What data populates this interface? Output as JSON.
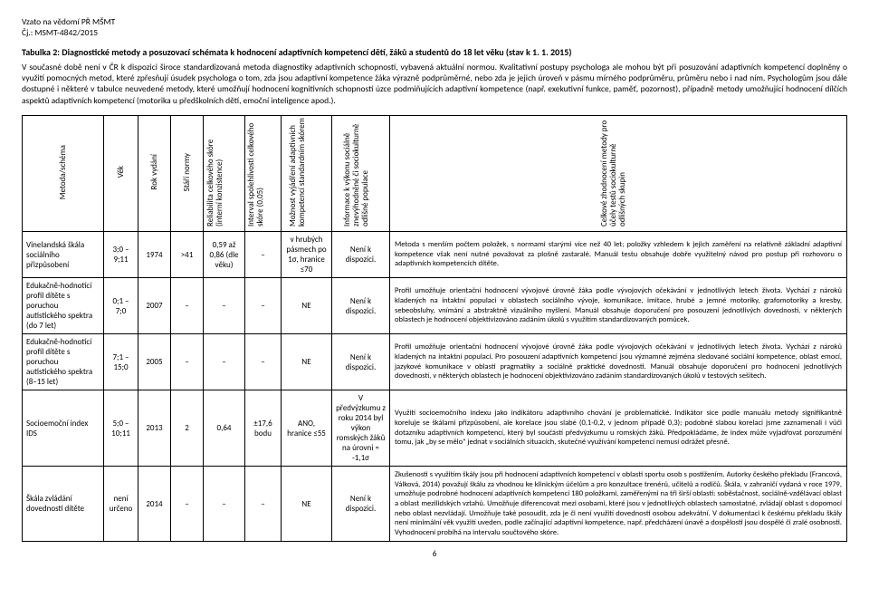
{
  "meta": {
    "line1": "Vzato na vědomí PŘ MŠMT",
    "line2": "Čj.: MSMT-4842/2015"
  },
  "title": "Tabulka 2: Diagnostické metody a posuzovací schémata k hodnocení adaptivních kompetencí dětí, žáků a studentů do 18 let věku (stav k 1. 1. 2015)",
  "intro": "V současné době není v ČR k dispozici široce standardizovaná metoda diagnostiky adaptivních schopností, vybavená aktuální normou. Kvalitativní postupy psychologa ale mohou být při posuzování adaptivních kompetencí doplněny o využití pomocných metod, které zpřesňují úsudek psychologa o tom, zda jsou adaptivní kompetence žáka výrazně podprůměrné, nebo zda je jejich úroveň v pásmu mírného podprůměru, průměru nebo i nad ním. Psychologům jsou dále dostupné i některé v tabulce neuvedené metody, které umožňují hodnocení kognitivních schopností úzce podmiňujících adaptivní kompetence (např. exekutivní funkce, paměť, pozornost), případně metody umožňující hodnocení dílčích aspektů adaptivních kompetencí (motorika u předškolních dětí, emoční inteligence apod.).",
  "headers": {
    "c0": "Metoda/schéma",
    "c1": "Věk",
    "c2": "Rok vydání",
    "c3": "Stáří normy",
    "c4": "Reliabilita celkového skóre (interní konzistence)",
    "c5": "Interval spolehlivosti celkového skóre (0,05)",
    "c6": "Možnost vyjádření adaptivních kompetencí standardním skórem",
    "c7": "Informace k výkonu sociálně znevýhodněné či sociokulturně odlišné populace",
    "c8": "Celkové zhodnocení metody pro účely testů sociokulturně odlišných skupin"
  },
  "rows": [
    {
      "name": "Vinelandská škála sociálního přizpůsobení",
      "age": "3;0 –9;11",
      "year": "1974",
      "normAge": ">41",
      "reliability": "0,59 až 0,86 (dle věku)",
      "ci": "–",
      "std": "v hrubých pásmech po 1σ, hranice ≤70",
      "info": "Není k dispozici.",
      "desc": "Metoda s menším počtem položek, s normami starými více než 40 let; položky vzhledem k jejich zaměření na relativně základní adaptivní kompetence však není nutné považovat za plošně zastaralé. Manuál testu obsahuje dobře využitelný návod pro postup při rozhovoru o adaptivních kompetencích dítěte."
    },
    {
      "name": "Edukačně-hodnotící profil dítěte s poruchou autistického spektra (do 7 let)",
      "age": "0;1 –7;0",
      "year": "2007",
      "normAge": "–",
      "reliability": "–",
      "ci": "–",
      "std": "NE",
      "info": "Není k dispozici.",
      "desc": "Profil umožňuje orientační hodnocení vývojové úrovně žáka podle vývojových očekávání v jednotlivých letech života. Vychází z nároků kladených na intaktní populaci v oblastech sociálního vývoje, komunikace, imitace, hrubé a jemné motoriky, grafomotoriky a kresby, sebeobsluhy, vnímání a abstraktně vizuálního myšlení. Manuál obsahuje doporučení pro posouzení jednotlivých dovedností, v některých oblastech je hodnocení objektivizováno zadáním úkolů s využitím standardizovaných pomůcek."
    },
    {
      "name": "Edukačně-hodnotící profil dítěte s poruchou autistického spektra (8–15 let)",
      "age": "7;1 –15;0",
      "year": "2005",
      "normAge": "–",
      "reliability": "–",
      "ci": "–",
      "std": "NE",
      "info": "Není k dispozici.",
      "desc": "Profil umožňuje orientační hodnocení vývojové úrovně žáka podle vývojových očekávání v jednotlivých letech života. Vychází z nároků kladených na intaktní populaci. Pro posouzení adaptivních kompetencí jsou významné zejména sledované sociální kompetence, oblast emocí, jazykové komunikace v oblasti pragmatiky a sociálně praktické dovednosti. Manuál obsahuje doporučení pro hodnocení jednotlivých dovedností, v některých oblastech je hodnocení objektivizováno zadáním standardizovaných úkolů v testových sešitech."
    },
    {
      "name": "Socioemoční index IDS",
      "age": "5;0 –10;11",
      "year": "2013",
      "normAge": "2",
      "reliability": "0,64",
      "ci": "±17,6 bodu",
      "std": "ANO, hranice ≤55",
      "info": "V předvýzkumu z roku 2014 byl výkon romských žáků na úrovni ≈ -1,1σ",
      "desc": "Využití socioemočního indexu jako indikátoru adaptivního chování je problematické. Indikátor sice podle manuálu metody signifikantně koreluje se škálami přizpůsobení, ale korelace jsou slabé (0,1-0,2, v jednom případě 0,3); podobně slabou korelaci jsme zaznamenali i vůči dotazníku adaptivních kompetencí, který byl součástí předvýzkumu u romských žáků. Předpokládáme, že index může vyjadřovat porozumění tomu, jak „by se mělo\" jednat v sociálních situacích, skutečné využívání kompetencí nemusí odrážet přesně."
    },
    {
      "name": "Škála zvládání dovedností dítěte",
      "age": "není určeno",
      "year": "2014",
      "normAge": "–",
      "reliability": "–",
      "ci": "–",
      "std": "NE",
      "info": "Není k dispozici.",
      "desc": "Zkušenosti s využitím škály jsou při hodnocení adaptivních kompetencí v oblasti sportu osob s postižením. Autorky českého překladu (Francová, Válková, 2014) považují škálu za vhodnou ke klinickým účelům a pro konzultace trenérů, učitelů a rodičů. Škála, v zahraničí vydaná v roce 1979, umožňuje podrobné hodnocení adaptivních kompetencí 180 položkami, zaměřenými na tři širší oblasti: soběstačnost, sociálně-vzdělávací oblast a oblast mezilidských vztahů. Umožňuje diferencovat mezi osobami, které jsou v jednotlivých oblastech samostatné, zvládají oblast s dopomocí nebo oblast nezvládají. Umožňuje také posoudit, zda je či není využití dovednosti osobou adekvátní. V dokumentaci k českému překladu škály není minimální věk využití uveden, podle začínající adaptivní kompetence, např. předcházení únavě a dospělosti jsou dospělé či zralé osobnosti. Vyhodnocení probíhá na intervalu součtového skóre."
    }
  ],
  "pagenum": "6"
}
